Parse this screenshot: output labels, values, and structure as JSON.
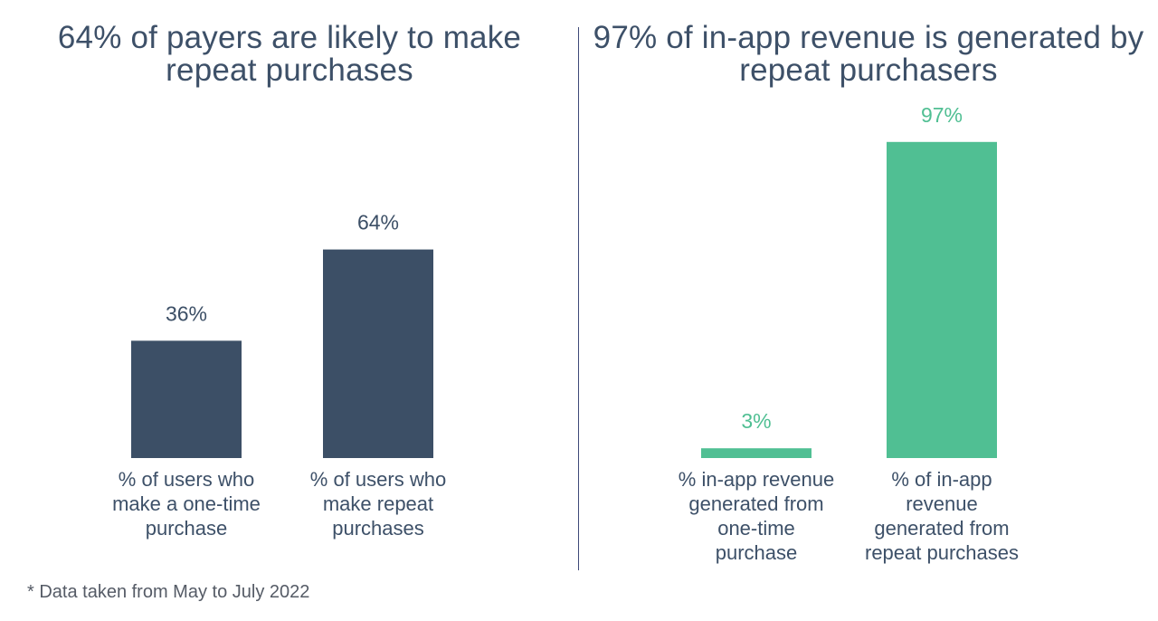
{
  "chart_data": [
    {
      "type": "bar",
      "title": "64% of payers are likely to make repeat purchases",
      "categories": [
        "% of users who make a one-time purchase",
        "% of users who make repeat purchases"
      ],
      "category_lines": [
        [
          "% of users who",
          "make a one-time",
          "purchase"
        ],
        [
          "% of users who",
          "make repeat",
          "purchases"
        ]
      ],
      "values": [
        36,
        64
      ],
      "data_labels": [
        "36%",
        "64%"
      ],
      "ylim": [
        0,
        100
      ],
      "color": "#3c4f66",
      "label_color": "#3c4f66",
      "grid": false
    },
    {
      "type": "bar",
      "title": "97% of in-app revenue is generated by repeat purchasers",
      "categories": [
        "% in-app revenue generated from one-time purchase",
        "% of in-app revenue generated from repeat purchases"
      ],
      "category_lines": [
        [
          "% in-app revenue",
          "generated from",
          "one-time",
          "purchase"
        ],
        [
          "% of in-app",
          "revenue",
          "generated from",
          "repeat purchases"
        ]
      ],
      "values": [
        3,
        97
      ],
      "data_labels": [
        "3%",
        "97%"
      ],
      "ylim": [
        0,
        100
      ],
      "color": "#50bf93",
      "label_color": "#50bf93",
      "grid": false
    }
  ],
  "titles": {
    "left": "64% of payers are likely to make repeat purchases",
    "right": "97% of in-app revenue is generated by repeat purchasers"
  },
  "footnote": "* Data taken from May to July 2022",
  "colors": {
    "title": "#3d5068",
    "divider": "#3f4a78",
    "category_text": "#3d5068"
  }
}
